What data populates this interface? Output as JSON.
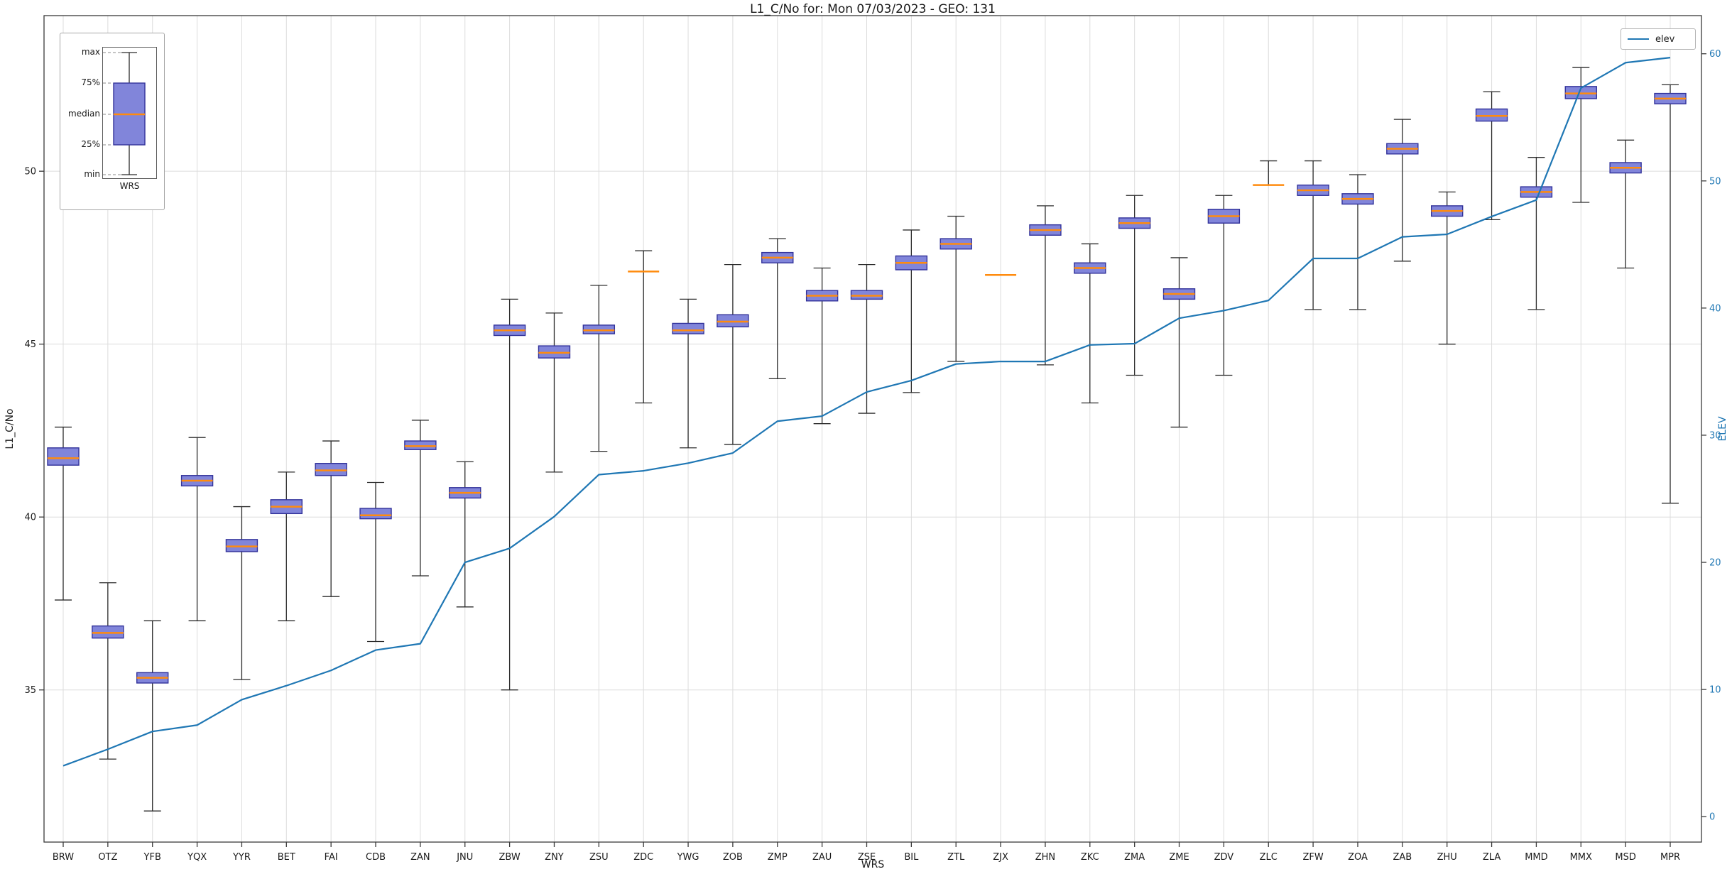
{
  "figure": {
    "title": "L1_C/No for: Mon 07/03/2023 - GEO: 131",
    "xlabel": "WRS",
    "ylabel_left": "L1_C/No",
    "ylabel_right": "ELEV",
    "legend": {
      "elev_label": "elev"
    },
    "inset_legend": {
      "labels": [
        "max",
        "75%",
        "median",
        "25%",
        "min"
      ],
      "xlabel": "WRS"
    },
    "colors": {
      "box_fill": "#8185da",
      "box_edge": "#32329a",
      "median": "#ff8b0e",
      "whisker": "#2b2b2b",
      "elev_line": "#1f77b4",
      "grid": "#dcdcdc",
      "spine": "#3a3a3a",
      "right_axis_text": "#1f77b4",
      "text": "#1a1a1a"
    }
  },
  "chart_data": {
    "type": "boxplot",
    "title": "L1_C/No for: Mon 07/03/2023 - GEO: 131",
    "xlabel": "WRS",
    "ylabel_left": "L1_C/No",
    "ylabel_right": "ELEV",
    "grid": true,
    "legend_position": "upper right",
    "ylim_left": [
      30.6,
      54.5
    ],
    "ylim_right": [
      -2,
      63
    ],
    "yticks_left": [
      35,
      40,
      45,
      50
    ],
    "yticks_right": [
      0,
      10,
      20,
      30,
      40,
      50,
      60
    ],
    "categories": [
      "BRW",
      "OTZ",
      "YFB",
      "YQX",
      "YYR",
      "BET",
      "FAI",
      "CDB",
      "ZAN",
      "JNU",
      "ZBW",
      "ZNY",
      "ZSU",
      "ZDC",
      "YWG",
      "ZOB",
      "ZMP",
      "ZAU",
      "ZSE",
      "BIL",
      "ZTL",
      "ZJX",
      "ZHN",
      "ZKC",
      "ZMA",
      "ZME",
      "ZDV",
      "ZLC",
      "ZFW",
      "ZOA",
      "ZAB",
      "ZHU",
      "ZLA",
      "MMD",
      "MMX",
      "MSD",
      "MPR"
    ],
    "boxes": [
      {
        "lo": 37.6,
        "q1": 41.5,
        "med": 41.7,
        "q3": 42.0,
        "hi": 42.6
      },
      {
        "lo": 33.0,
        "q1": 36.5,
        "med": 36.65,
        "q3": 36.85,
        "hi": 38.1
      },
      {
        "lo": 31.5,
        "q1": 35.2,
        "med": 35.35,
        "q3": 35.5,
        "hi": 37.0
      },
      {
        "lo": 37.0,
        "q1": 40.9,
        "med": 41.05,
        "q3": 41.2,
        "hi": 42.3
      },
      {
        "lo": 35.3,
        "q1": 39.0,
        "med": 39.15,
        "q3": 39.35,
        "hi": 40.3
      },
      {
        "lo": 37.0,
        "q1": 40.1,
        "med": 40.3,
        "q3": 40.5,
        "hi": 41.3
      },
      {
        "lo": 37.7,
        "q1": 41.2,
        "med": 41.35,
        "q3": 41.55,
        "hi": 42.2
      },
      {
        "lo": 36.4,
        "q1": 39.95,
        "med": 40.05,
        "q3": 40.25,
        "hi": 41.0
      },
      {
        "lo": 38.3,
        "q1": 41.95,
        "med": 42.05,
        "q3": 42.2,
        "hi": 42.8
      },
      {
        "lo": 37.4,
        "q1": 40.55,
        "med": 40.7,
        "q3": 40.85,
        "hi": 41.6
      },
      {
        "lo": 35.0,
        "q1": 45.25,
        "med": 45.4,
        "q3": 45.55,
        "hi": 46.3
      },
      {
        "lo": 41.3,
        "q1": 44.6,
        "med": 44.75,
        "q3": 44.95,
        "hi": 45.9
      },
      {
        "lo": 41.9,
        "q1": 45.3,
        "med": 45.4,
        "q3": 45.55,
        "hi": 46.7
      },
      {
        "lo": 43.3,
        "q1": 47.1,
        "med": 47.1,
        "q3": 47.1,
        "hi": 47.7
      },
      {
        "lo": 42.0,
        "q1": 45.3,
        "med": 45.4,
        "q3": 45.6,
        "hi": 46.3
      },
      {
        "lo": 42.1,
        "q1": 45.5,
        "med": 45.65,
        "q3": 45.85,
        "hi": 47.3
      },
      {
        "lo": 44.0,
        "q1": 47.35,
        "med": 47.5,
        "q3": 47.65,
        "hi": 48.05
      },
      {
        "lo": 42.7,
        "q1": 46.25,
        "med": 46.4,
        "q3": 46.55,
        "hi": 47.2
      },
      {
        "lo": 43.0,
        "q1": 46.3,
        "med": 46.4,
        "q3": 46.55,
        "hi": 47.3
      },
      {
        "lo": 43.6,
        "q1": 47.15,
        "med": 47.35,
        "q3": 47.55,
        "hi": 48.3
      },
      {
        "lo": 44.5,
        "q1": 47.75,
        "med": 47.9,
        "q3": 48.05,
        "hi": 48.7
      },
      {
        "lo": 47.0,
        "q1": 47.0,
        "med": 47.0,
        "q3": 47.0,
        "hi": 47.0
      },
      {
        "lo": 44.4,
        "q1": 48.15,
        "med": 48.3,
        "q3": 48.45,
        "hi": 49.0
      },
      {
        "lo": 43.3,
        "q1": 47.05,
        "med": 47.2,
        "q3": 47.35,
        "hi": 47.9
      },
      {
        "lo": 44.1,
        "q1": 48.35,
        "med": 48.5,
        "q3": 48.65,
        "hi": 49.3
      },
      {
        "lo": 42.6,
        "q1": 46.3,
        "med": 46.45,
        "q3": 46.6,
        "hi": 47.5
      },
      {
        "lo": 44.1,
        "q1": 48.5,
        "med": 48.7,
        "q3": 48.9,
        "hi": 49.3
      },
      {
        "lo": 49.6,
        "q1": 49.6,
        "med": 49.6,
        "q3": 49.6,
        "hi": 50.3
      },
      {
        "lo": 46.0,
        "q1": 49.3,
        "med": 49.45,
        "q3": 49.6,
        "hi": 50.3
      },
      {
        "lo": 46.0,
        "q1": 49.05,
        "med": 49.2,
        "q3": 49.35,
        "hi": 49.9
      },
      {
        "lo": 47.4,
        "q1": 50.5,
        "med": 50.65,
        "q3": 50.8,
        "hi": 51.5
      },
      {
        "lo": 45.0,
        "q1": 48.7,
        "med": 48.85,
        "q3": 49.0,
        "hi": 49.4
      },
      {
        "lo": 48.6,
        "q1": 51.45,
        "med": 51.6,
        "q3": 51.8,
        "hi": 52.3
      },
      {
        "lo": 46.0,
        "q1": 49.25,
        "med": 49.4,
        "q3": 49.55,
        "hi": 50.4
      },
      {
        "lo": 49.1,
        "q1": 52.1,
        "med": 52.25,
        "q3": 52.45,
        "hi": 53.0
      },
      {
        "lo": 47.2,
        "q1": 49.95,
        "med": 50.1,
        "q3": 50.25,
        "hi": 50.9
      },
      {
        "lo": 40.4,
        "q1": 51.95,
        "med": 52.1,
        "q3": 52.25,
        "hi": 52.5
      }
    ],
    "series": [
      {
        "name": "elev",
        "type": "line",
        "axis": "right",
        "values": [
          4,
          5.3,
          6.7,
          7.2,
          9.2,
          10.3,
          11.5,
          13.1,
          13.6,
          20,
          21.1,
          23.6,
          26.9,
          27.2,
          27.8,
          28.6,
          31.1,
          31.5,
          33.4,
          34.3,
          35.6,
          35.8,
          35.8,
          37.1,
          37.2,
          39.2,
          39.8,
          40.6,
          43.9,
          43.9,
          45.6,
          45.8,
          47.2,
          48.5,
          57.3,
          59.3,
          59.7
        ]
      }
    ]
  }
}
